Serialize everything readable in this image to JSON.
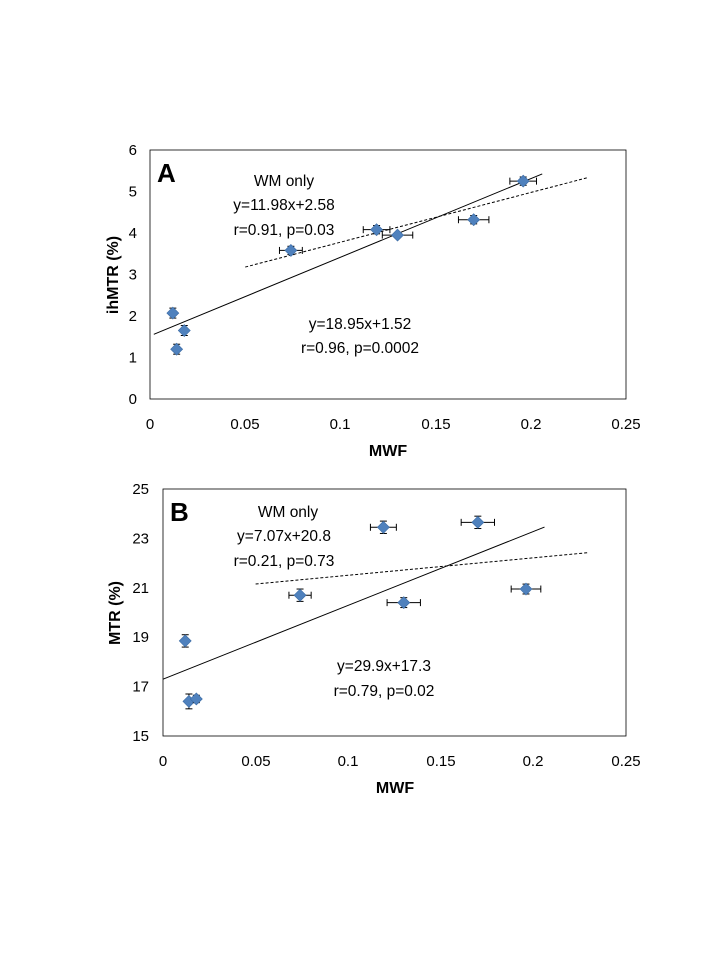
{
  "chart_data": [
    {
      "type": "scatter",
      "panel": "A",
      "xlabel": "MWF",
      "ylabel": "ihMTR (%)",
      "xlim": [
        0,
        0.25
      ],
      "ylim": [
        0,
        6
      ],
      "xticks": [
        "0",
        "0.05",
        "0.1",
        "0.15",
        "0.2",
        "0.25"
      ],
      "yticks": [
        "0",
        "1",
        "2",
        "3",
        "4",
        "5",
        "6"
      ],
      "marker_color": "#4f81bd",
      "points": [
        {
          "x": 0.012,
          "y": 2.07,
          "xerr": 0,
          "yerr": 0.12
        },
        {
          "x": 0.014,
          "y": 1.2,
          "xerr": 0,
          "yerr": 0.12
        },
        {
          "x": 0.018,
          "y": 1.65,
          "xerr": 0,
          "yerr": 0.12
        },
        {
          "x": 0.074,
          "y": 3.58,
          "xerr": 0.006,
          "yerr": 0.1
        },
        {
          "x": 0.119,
          "y": 4.08,
          "xerr": 0.007,
          "yerr": 0.1
        },
        {
          "x": 0.13,
          "y": 3.95,
          "xerr": 0.008,
          "yerr": 0.05
        },
        {
          "x": 0.17,
          "y": 4.32,
          "xerr": 0.008,
          "yerr": 0.1
        },
        {
          "x": 0.196,
          "y": 5.25,
          "xerr": 0.007,
          "yerr": 0.1
        }
      ],
      "fit_all": {
        "slope": 18.95,
        "intercept": 1.52,
        "x_range": [
          0.002,
          0.206
        ],
        "style": "solid"
      },
      "fit_wm": {
        "slope": 11.98,
        "intercept": 2.58,
        "x_range": [
          0.05,
          0.23
        ],
        "style": "dashed"
      },
      "annotations": {
        "wm_title": "WM only",
        "wm_eq": "y=11.98x+2.58",
        "wm_stats": "r=0.91, p=0.03",
        "all_eq": "y=18.95x+1.52",
        "all_stats": "r=0.96, p=0.0002"
      }
    },
    {
      "type": "scatter",
      "panel": "B",
      "xlabel": "MWF",
      "ylabel": "MTR (%)",
      "xlim": [
        0,
        0.25
      ],
      "ylim": [
        15,
        25
      ],
      "xticks": [
        "0",
        "0.05",
        "0.1",
        "0.15",
        "0.2",
        "0.25"
      ],
      "yticks": [
        "15",
        "17",
        "19",
        "21",
        "23",
        "25"
      ],
      "marker_color": "#4f81bd",
      "points": [
        {
          "x": 0.012,
          "y": 18.85,
          "xerr": 0,
          "yerr": 0.25
        },
        {
          "x": 0.014,
          "y": 16.4,
          "xerr": 0,
          "yerr": 0.3
        },
        {
          "x": 0.018,
          "y": 16.5,
          "xerr": 0,
          "yerr": 0.15
        },
        {
          "x": 0.074,
          "y": 20.7,
          "xerr": 0.006,
          "yerr": 0.25
        },
        {
          "x": 0.119,
          "y": 23.45,
          "xerr": 0.007,
          "yerr": 0.25
        },
        {
          "x": 0.13,
          "y": 20.4,
          "xerr": 0.009,
          "yerr": 0.2
        },
        {
          "x": 0.17,
          "y": 23.65,
          "xerr": 0.009,
          "yerr": 0.25
        },
        {
          "x": 0.196,
          "y": 20.95,
          "xerr": 0.008,
          "yerr": 0.2
        }
      ],
      "fit_all": {
        "slope": 29.9,
        "intercept": 17.3,
        "x_range": [
          0,
          0.206
        ],
        "style": "solid"
      },
      "fit_wm": {
        "slope": 7.07,
        "intercept": 20.8,
        "x_range": [
          0.05,
          0.23
        ],
        "style": "dashed"
      },
      "annotations": {
        "wm_title": "WM only",
        "wm_eq": "y=7.07x+20.8",
        "wm_stats": "r=0.21, p=0.73",
        "all_eq": "y=29.9x+17.3",
        "all_stats": "r=0.79, p=0.02"
      }
    }
  ]
}
